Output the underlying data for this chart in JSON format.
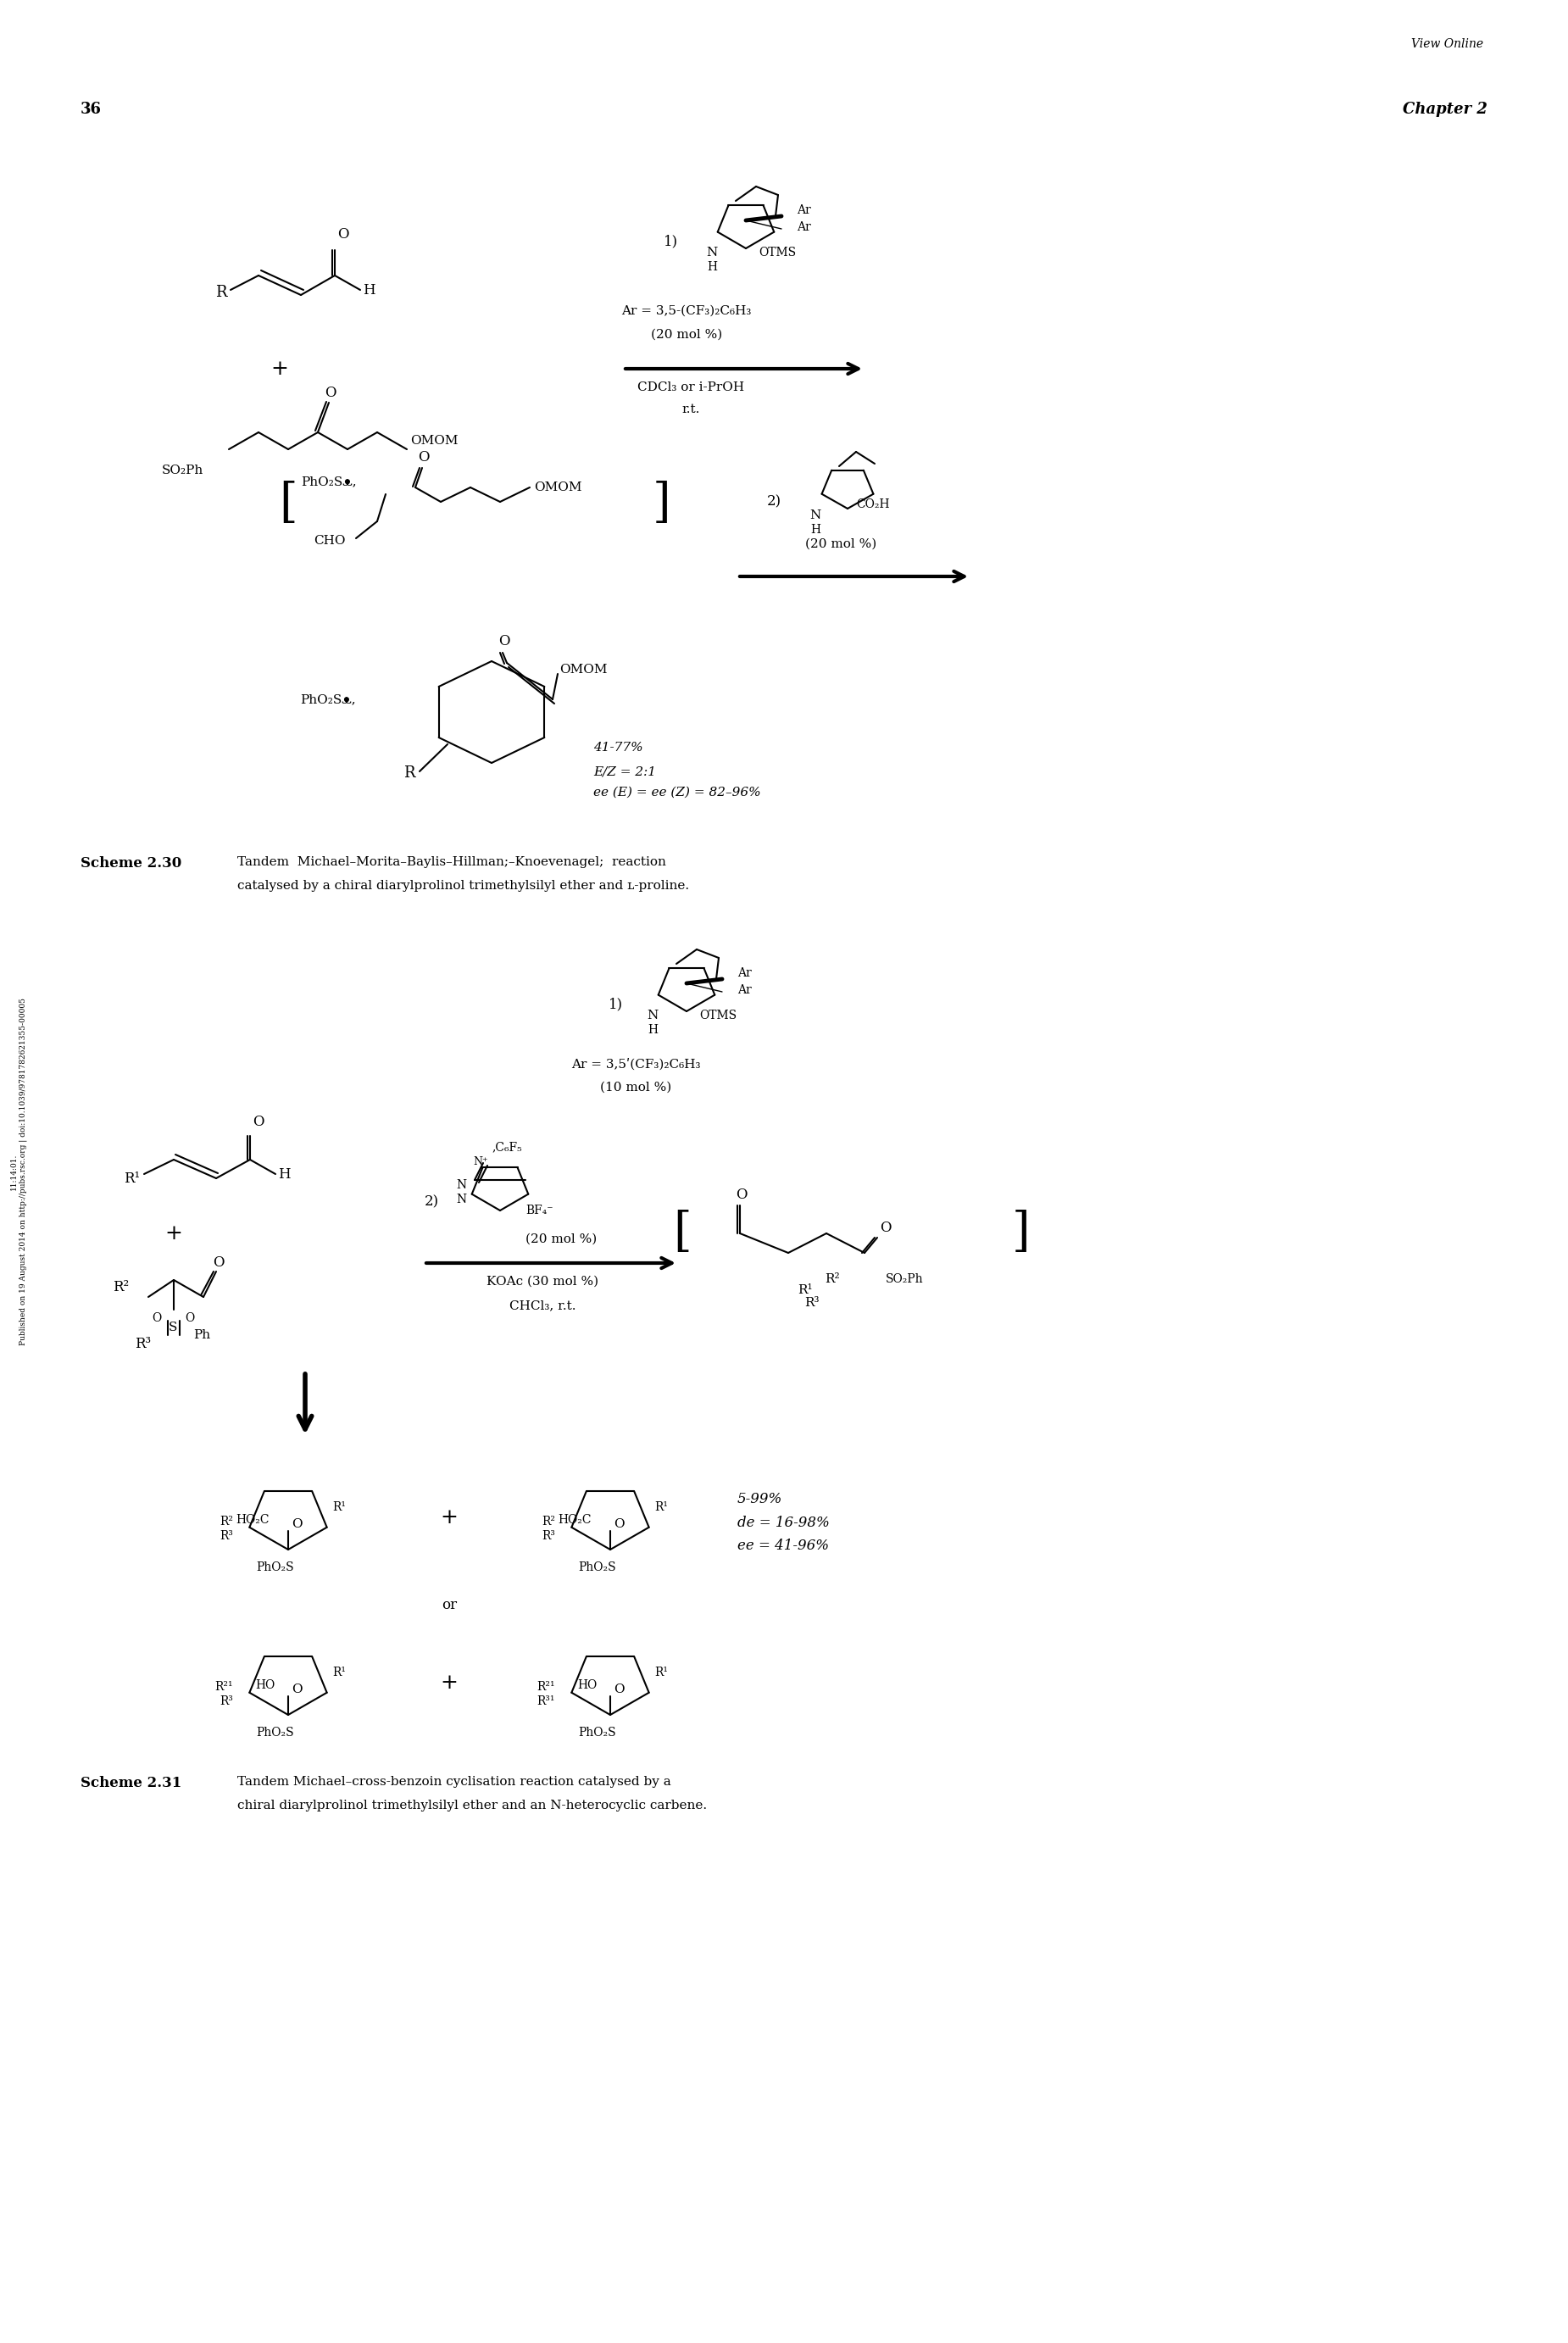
{
  "page_width": 18.5,
  "page_height": 27.64,
  "bg": "#ffffff",
  "header": "View Online",
  "page_num": "36",
  "chapter": "Chapter 2",
  "sidebar": "11:14:01.\nPublished on 19 August 2014 on http://pubs.rsc.org | doi:10.1039/9781782621355-00005",
  "s230_label": "Scheme 2.30",
  "s230_desc1": "Tandem  Michael–Morita–Baylis–Hillman;–Knoevenagel;  reaction",
  "s230_desc2": "catalysed by a chiral diarylprolinol trimethylsilyl ether and ʟ-proline.",
  "s231_label": "Scheme 2.31",
  "s231_desc1": "Tandem Michael–cross-benzoin cyclisation reaction catalysed by a",
  "s231_desc2": "chiral diarylprolinol trimethylsilyl ether and an N-heterocyclic carbene.",
  "cat1_ar": "Ar = 3,5-(CF₃)₂C₆H₃",
  "cat1_mol": "(20 mol %)",
  "cond1_solv": "CDCl₃ or i-PrOH",
  "cond1_temp": "r.t.",
  "cat2_mol": "(20 mol %)",
  "cat3_ar": "Ar = 3,5ʹ(CF₃)₂C₆H₃",
  "cat3_mol": "(10 mol %)",
  "cat4_mol": "(20 mol %)",
  "cond2_koac": "KOAc (30 mol %)",
  "cond2_solv": "CHCl₃, r.t.",
  "yield230_1": "41-77%",
  "yield230_2": "E/Z = 2:1",
  "yield230_3": "ee (E) = ee (Z) = 82–96%",
  "yield231_1": "5-99%",
  "yield231_2": "de = 16-98%",
  "yield231_3": "ee = 41-96%"
}
